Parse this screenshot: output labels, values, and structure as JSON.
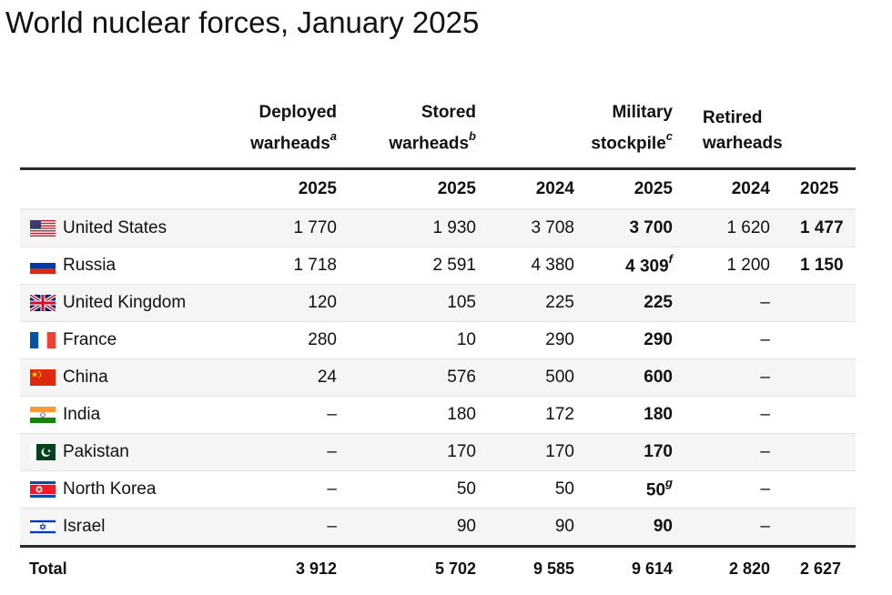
{
  "title": "World nuclear forces, January 2025",
  "headers": {
    "deployed": {
      "line1": "Deployed",
      "line2": "warheads",
      "note": "a"
    },
    "stored": {
      "line1": "Stored",
      "line2": "warheads",
      "note": "b"
    },
    "military": {
      "line1": "Military",
      "line2": "stockpile",
      "note": "c"
    },
    "retired": {
      "line1": "Retired",
      "line2": "warheads"
    }
  },
  "years": {
    "deployed": "2025",
    "stored": "2025",
    "mil_2024": "2024",
    "mil_2025": "2025",
    "ret_2024": "2024",
    "ret_2025": "2025"
  },
  "rows": [
    {
      "country": "United States",
      "flag": "us-flag-icon",
      "deployed": "1 770",
      "stored": "1 930",
      "mil_2024": "3 708",
      "mil_2025": "3 700",
      "mil_note": "",
      "ret_2024": "1 620",
      "ret_2025": "1 477"
    },
    {
      "country": "Russia",
      "flag": "russia-flag-icon",
      "deployed": "1 718",
      "stored": "2 591",
      "mil_2024": "4 380",
      "mil_2025": "4 309",
      "mil_note": "f",
      "ret_2024": "1 200",
      "ret_2025": "1 150"
    },
    {
      "country": "United Kingdom",
      "flag": "uk-flag-icon",
      "deployed": "120",
      "stored": "105",
      "mil_2024": "225",
      "mil_2025": "225",
      "mil_note": "",
      "ret_2024": "–",
      "ret_2025": ""
    },
    {
      "country": "France",
      "flag": "france-flag-icon",
      "deployed": "280",
      "stored": "10",
      "mil_2024": "290",
      "mil_2025": "290",
      "mil_note": "",
      "ret_2024": "–",
      "ret_2025": ""
    },
    {
      "country": "China",
      "flag": "china-flag-icon",
      "deployed": "24",
      "stored": "576",
      "mil_2024": "500",
      "mil_2025": "600",
      "mil_note": "",
      "ret_2024": "–",
      "ret_2025": ""
    },
    {
      "country": "India",
      "flag": "india-flag-icon",
      "deployed": "–",
      "stored": "180",
      "mil_2024": "172",
      "mil_2025": "180",
      "mil_note": "",
      "ret_2024": "–",
      "ret_2025": ""
    },
    {
      "country": "Pakistan",
      "flag": "pakistan-flag-icon",
      "deployed": "–",
      "stored": "170",
      "mil_2024": "170",
      "mil_2025": "170",
      "mil_note": "",
      "ret_2024": "–",
      "ret_2025": ""
    },
    {
      "country": "North Korea",
      "flag": "north-korea-flag-icon",
      "deployed": "–",
      "stored": "50",
      "mil_2024": "50",
      "mil_2025": "50",
      "mil_note": "g",
      "ret_2024": "–",
      "ret_2025": ""
    },
    {
      "country": "Israel",
      "flag": "israel-flag-icon",
      "deployed": "–",
      "stored": "90",
      "mil_2024": "90",
      "mil_2025": "90",
      "mil_note": "",
      "ret_2024": "–",
      "ret_2025": ""
    }
  ],
  "total": {
    "label": "Total",
    "deployed": "3 912",
    "stored": "5 702",
    "mil_2024": "9 585",
    "mil_2025": "9 614",
    "ret_2024": "2 820",
    "ret_2025": "2 627"
  },
  "colors": {
    "rule_dark": "#2a2a2a",
    "row_alt": "#f5f5f5",
    "rule_light": "#e2e2e2"
  }
}
